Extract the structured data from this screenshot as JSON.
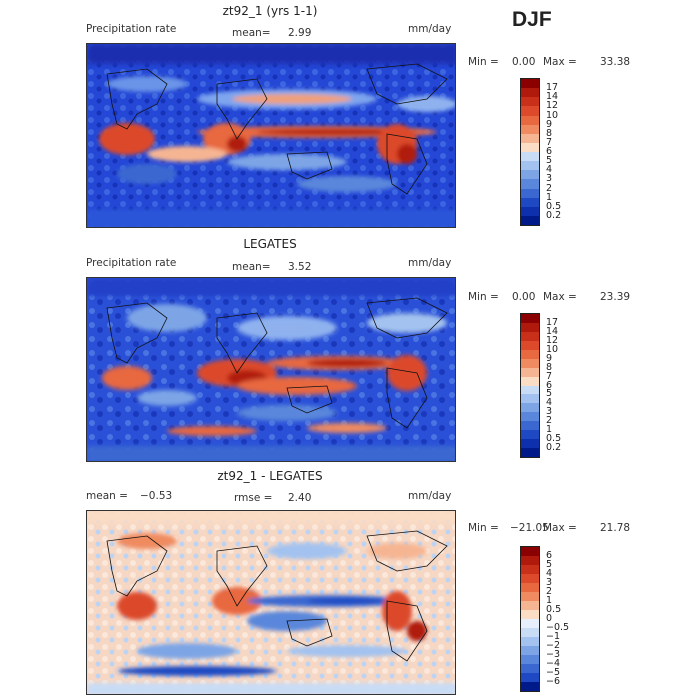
{
  "season": "DJF",
  "panels": [
    {
      "title": "zt92_1 (yrs 1-1)",
      "left_label": "Precipitation rate",
      "mean_label": "mean=",
      "mean_value": "2.99",
      "units": "mm/day",
      "min_label": "Min =",
      "min_value": "0.00",
      "max_label": "Max =",
      "max_value": "33.38",
      "colorbar": {
        "ticks": [
          "17",
          "14",
          "12",
          "10",
          "9",
          "8",
          "7",
          "6",
          "5",
          "4",
          "3",
          "2",
          "1",
          "0.5",
          "0.2"
        ],
        "colors": [
          "#8b0000",
          "#b01a0d",
          "#c9301a",
          "#dc4a2b",
          "#e8683f",
          "#f08b61",
          "#f6b592",
          "#fbdcc4",
          "#c9dcf5",
          "#a3c2ef",
          "#7da5e6",
          "#5a87db",
          "#3a68d0",
          "#1f49c2",
          "#0f30ad",
          "#001a8a"
        ]
      }
    },
    {
      "title": "LEGATES",
      "left_label": "Precipitation rate",
      "mean_label": "mean=",
      "mean_value": "3.52",
      "units": "mm/day",
      "min_label": "Min =",
      "min_value": "0.00",
      "max_label": "Max =",
      "max_value": "23.39",
      "colorbar": {
        "ticks": [
          "17",
          "14",
          "12",
          "10",
          "9",
          "8",
          "7",
          "6",
          "5",
          "4",
          "3",
          "2",
          "1",
          "0.5",
          "0.2"
        ],
        "colors": [
          "#8b0000",
          "#b01a0d",
          "#c9301a",
          "#dc4a2b",
          "#e8683f",
          "#f08b61",
          "#f6b592",
          "#fbdcc4",
          "#c9dcf5",
          "#a3c2ef",
          "#7da5e6",
          "#5a87db",
          "#3a68d0",
          "#1f49c2",
          "#0f30ad",
          "#001a8a"
        ]
      }
    },
    {
      "title": "zt92_1 - LEGATES",
      "mean_label": "mean =",
      "mean_value": "−0.53",
      "rmse_label": "rmse =",
      "rmse_value": "2.40",
      "units": "mm/day",
      "min_label": "Min =",
      "min_value": "−21.05",
      "max_label": "Max =",
      "max_value": "21.78",
      "colorbar": {
        "ticks": [
          "6",
          "5",
          "4",
          "3",
          "2",
          "1",
          "0.5",
          "0",
          "−0.5",
          "−1",
          "−2",
          "−3",
          "−4",
          "−5",
          "−6"
        ],
        "colors": [
          "#8b0000",
          "#b01a0d",
          "#c9301a",
          "#dc4a2b",
          "#e8683f",
          "#f08b61",
          "#f6b592",
          "#fbdcc4",
          "#e6effb",
          "#c9dcf5",
          "#a3c2ef",
          "#7da5e6",
          "#5a87db",
          "#3a68d0",
          "#1f49c2",
          "#001a8a"
        ]
      }
    }
  ]
}
